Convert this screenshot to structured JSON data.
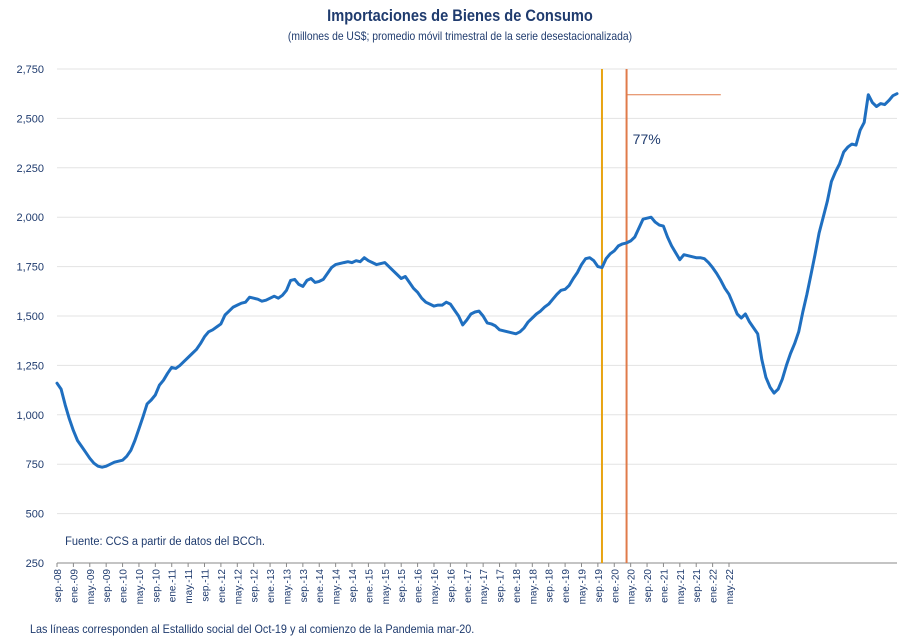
{
  "chart_data": {
    "type": "line",
    "title": "Importaciones de Bienes de Consumo",
    "subtitle": "(millones de US$; promedio móvil trimestral de la serie desestacionalizada)",
    "ylim": [
      250,
      2750
    ],
    "yticks": [
      "250",
      "500",
      "750",
      "1,000",
      "1,250",
      "1,500",
      "1,750",
      "2,000",
      "2,250",
      "2,500",
      "2,750"
    ],
    "ytick_values": [
      250,
      500,
      750,
      1000,
      1250,
      1500,
      1750,
      2000,
      2250,
      2500,
      2750
    ],
    "xticks": [
      "sep.-08",
      "ene.-09",
      "may.-09",
      "sep.-09",
      "ene.-10",
      "may.-10",
      "sep.-10",
      "ene.-11",
      "may.-11",
      "sep.-11",
      "ene.-12",
      "may.-12",
      "sep.-12",
      "ene.-13",
      "may.-13",
      "sep.-13",
      "ene.-14",
      "may.-14",
      "sep.-14",
      "ene.-15",
      "may.-15",
      "sep.-15",
      "ene.-16",
      "may.-16",
      "sep.-16",
      "ene.-17",
      "may.-17",
      "sep.-17",
      "ene.-18",
      "may.-18",
      "sep.-18",
      "ene.-19",
      "may.-19",
      "sep.-19",
      "ene.-20",
      "may.-20",
      "sep.-20",
      "ene.-21",
      "may.-21",
      "sep.-21",
      "ene.-22",
      "may.-22"
    ],
    "grid": true,
    "series": [
      {
        "name": "",
        "color": "#1f6fc0",
        "values": [
          1160,
          1130,
          1050,
          980,
          920,
          870,
          840,
          810,
          780,
          755,
          740,
          735,
          740,
          750,
          760,
          765,
          770,
          790,
          820,
          870,
          930,
          990,
          1055,
          1075,
          1100,
          1150,
          1175,
          1210,
          1240,
          1235,
          1250,
          1270,
          1290,
          1310,
          1330,
          1360,
          1395,
          1420,
          1430,
          1445,
          1460,
          1505,
          1525,
          1545,
          1555,
          1565,
          1570,
          1595,
          1590,
          1585,
          1575,
          1580,
          1590,
          1600,
          1590,
          1605,
          1630,
          1680,
          1685,
          1660,
          1650,
          1680,
          1690,
          1670,
          1675,
          1685,
          1715,
          1745,
          1760,
          1765,
          1770,
          1775,
          1770,
          1780,
          1775,
          1795,
          1780,
          1770,
          1760,
          1765,
          1770,
          1750,
          1730,
          1710,
          1690,
          1700,
          1670,
          1640,
          1620,
          1590,
          1570,
          1560,
          1550,
          1555,
          1555,
          1570,
          1560,
          1530,
          1500,
          1455,
          1480,
          1510,
          1520,
          1525,
          1500,
          1465,
          1460,
          1450,
          1430,
          1425,
          1420,
          1415,
          1410,
          1420,
          1440,
          1470,
          1490,
          1510,
          1525,
          1545,
          1560,
          1585,
          1610,
          1630,
          1635,
          1655,
          1690,
          1720,
          1760,
          1790,
          1795,
          1780,
          1750,
          1745,
          1790,
          1815,
          1830,
          1855,
          1865,
          1870,
          1880,
          1900,
          1945,
          1990,
          1995,
          2000,
          1975,
          1960,
          1955,
          1900,
          1855,
          1820,
          1785,
          1810,
          1805,
          1800,
          1795,
          1795,
          1790,
          1770,
          1745,
          1715,
          1680,
          1640,
          1610,
          1560,
          1510,
          1490,
          1510,
          1470,
          1440,
          1410,
          1280,
          1190,
          1140,
          1110,
          1130,
          1180,
          1250,
          1310,
          1360,
          1420,
          1520,
          1610,
          1710,
          1810,
          1920,
          2000,
          2080,
          2180,
          2230,
          2270,
          2330,
          2355,
          2370,
          2365,
          2440,
          2480,
          2620,
          2580,
          2560,
          2575,
          2570,
          2590,
          2615,
          2625
        ]
      }
    ],
    "vlines": [
      {
        "x_index": 133,
        "color": "#e8a413",
        "label": ""
      },
      {
        "x_index": 139,
        "color": "#e07b4a",
        "label": ""
      }
    ],
    "reference_hline": {
      "from_index": 139,
      "to_index": 162,
      "y": 2620,
      "color": "#e07b4a"
    },
    "annotations": [
      {
        "text": "77%",
        "x_index": 140,
        "y": 2395
      },
      {
        "text": "Fuente: CCS a partir de datos del BCCh.",
        "x_index": 1,
        "y": 362
      }
    ],
    "footnote": "Las líneas corresponden al Estallido social del Oct-19 y al comienzo de la Pandemia mar-20."
  }
}
